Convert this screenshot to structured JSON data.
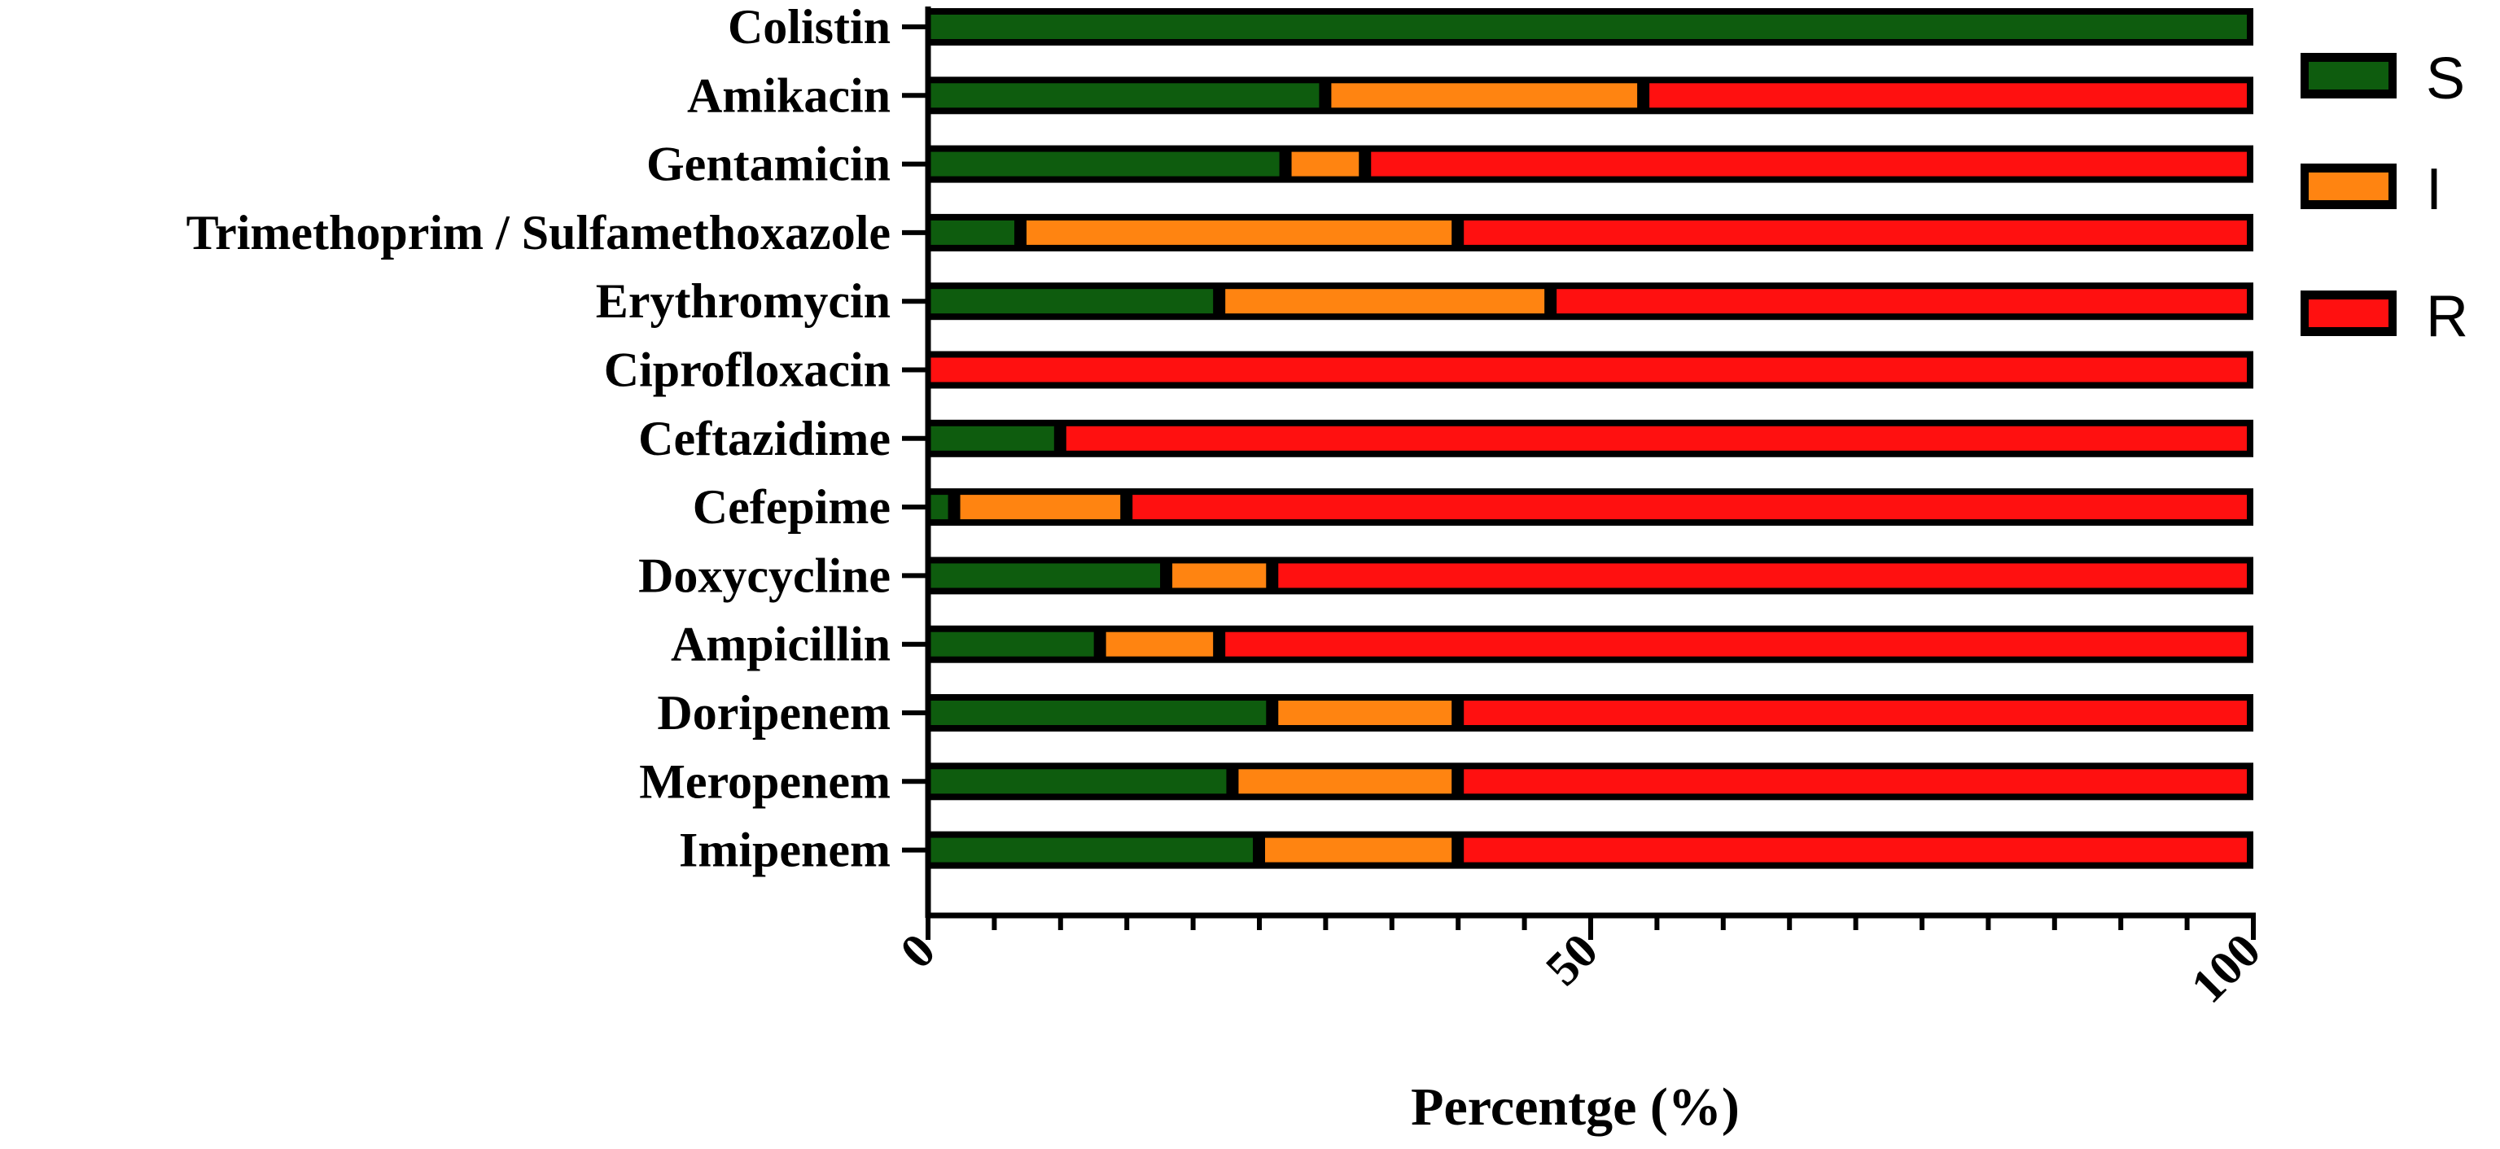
{
  "chart_data": {
    "type": "bar",
    "orientation": "horizontal",
    "stacked": true,
    "title": "",
    "xlabel": "Percentge (%)",
    "ylabel": "",
    "xlim": [
      0,
      100
    ],
    "x_ticks": [
      0,
      50,
      100
    ],
    "categories": [
      "Colistin",
      "Amikacin",
      "Gentamicin",
      "Trimethoprim / Sulfamethoxazole",
      "Erythromycin",
      "Ciprofloxacin",
      "Ceftazidime",
      "Cefepime",
      "Doxycycline",
      "Ampicillin",
      "Doripenem",
      "Meropenem",
      "Imipenem"
    ],
    "series": [
      {
        "name": "S",
        "color": "#0e5c0e",
        "values": [
          100,
          30,
          27,
          7,
          22,
          0,
          10,
          2,
          18,
          13,
          26,
          23,
          25
        ]
      },
      {
        "name": "I",
        "color": "#ff8411",
        "values": [
          0,
          24,
          6,
          33,
          25,
          0,
          0,
          13,
          8,
          9,
          14,
          17,
          15
        ]
      },
      {
        "name": "R",
        "color": "#ff1010",
        "values": [
          0,
          46,
          67,
          60,
          53,
          100,
          90,
          85,
          74,
          78,
          60,
          60,
          60
        ]
      }
    ],
    "legend": [
      "S",
      "I",
      "R"
    ],
    "legend_position": "right",
    "grid": false
  }
}
